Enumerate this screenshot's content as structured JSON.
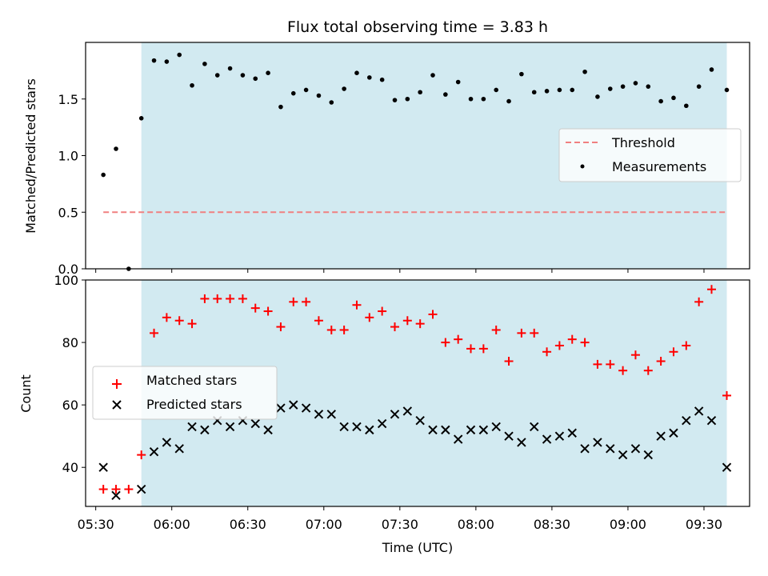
{
  "chart_data": [
    {
      "type": "scatter",
      "title": "Flux total observing time = 3.83 h",
      "xlabel": "",
      "ylabel": "Matched/Predicted stars",
      "ylim": [
        0,
        2.0
      ],
      "yticks": [
        "0.0",
        "0.5",
        "1.0",
        "1.5"
      ],
      "ytick_values": [
        0,
        0.5,
        1.0,
        1.5
      ],
      "xlim": [
        "05:26",
        "09:48"
      ],
      "shaded_span": [
        "05:48",
        "09:39"
      ],
      "shade_color": "#add8e6",
      "legend": {
        "placement": "center-right",
        "entries": [
          "Threshold",
          "Measurements"
        ]
      },
      "threshold": {
        "name": "Threshold",
        "value": 0.5,
        "x_start": "05:33",
        "x_end": "09:39",
        "color": "#f08080",
        "style": "dashed"
      },
      "series": [
        {
          "name": "Measurements",
          "color": "#000000",
          "marker": "dot",
          "x": [
            "05:33",
            "05:38",
            "05:43",
            "05:48",
            "05:53",
            "05:58",
            "06:03",
            "06:08",
            "06:13",
            "06:18",
            "06:23",
            "06:28",
            "06:33",
            "06:38",
            "06:43",
            "06:48",
            "06:53",
            "06:58",
            "07:03",
            "07:08",
            "07:13",
            "07:18",
            "07:23",
            "07:28",
            "07:33",
            "07:38",
            "07:43",
            "07:48",
            "07:53",
            "07:58",
            "08:03",
            "08:08",
            "08:13",
            "08:18",
            "08:23",
            "08:28",
            "08:33",
            "08:38",
            "08:43",
            "08:48",
            "08:53",
            "08:58",
            "09:03",
            "09:08",
            "09:13",
            "09:18",
            "09:23",
            "09:28",
            "09:33",
            "09:39"
          ],
          "y": [
            0.83,
            1.06,
            0.0,
            1.33,
            1.84,
            1.83,
            1.89,
            1.62,
            1.81,
            1.71,
            1.77,
            1.71,
            1.68,
            1.73,
            1.43,
            1.55,
            1.58,
            1.53,
            1.47,
            1.59,
            1.73,
            1.69,
            1.67,
            1.49,
            1.5,
            1.56,
            1.71,
            1.54,
            1.65,
            1.5,
            1.5,
            1.58,
            1.48,
            1.72,
            1.56,
            1.57,
            1.58,
            1.58,
            1.74,
            1.52,
            1.59,
            1.61,
            1.64,
            1.61,
            1.48,
            1.51,
            1.44,
            1.61,
            1.76,
            1.58
          ]
        }
      ]
    },
    {
      "type": "scatter",
      "title": "",
      "xlabel": "Time (UTC)",
      "ylabel": "Count",
      "ylim": [
        27.5,
        100
      ],
      "yticks": [
        "40",
        "60",
        "80",
        "100"
      ],
      "ytick_values": [
        40,
        60,
        80,
        100
      ],
      "xlim": [
        "05:26",
        "09:48"
      ],
      "xticks": [
        "05:30",
        "06:00",
        "06:30",
        "07:00",
        "07:30",
        "08:00",
        "08:30",
        "09:00",
        "09:30"
      ],
      "shaded_span": [
        "05:48",
        "09:39"
      ],
      "shade_color": "#add8e6",
      "legend": {
        "placement": "center-left",
        "entries": [
          "Matched stars",
          "Predicted stars"
        ]
      },
      "series": [
        {
          "name": "Matched stars",
          "color": "#ff0000",
          "marker": "plus",
          "x": [
            "05:33",
            "05:38",
            "05:43",
            "05:48",
            "05:53",
            "05:58",
            "06:03",
            "06:08",
            "06:13",
            "06:18",
            "06:23",
            "06:28",
            "06:33",
            "06:38",
            "06:43",
            "06:48",
            "06:53",
            "06:58",
            "07:03",
            "07:08",
            "07:13",
            "07:18",
            "07:23",
            "07:28",
            "07:33",
            "07:38",
            "07:43",
            "07:48",
            "07:53",
            "07:58",
            "08:03",
            "08:08",
            "08:13",
            "08:18",
            "08:23",
            "08:28",
            "08:33",
            "08:38",
            "08:43",
            "08:48",
            "08:53",
            "08:58",
            "09:03",
            "09:08",
            "09:13",
            "09:18",
            "09:23",
            "09:28",
            "09:33",
            "09:39"
          ],
          "y": [
            33,
            33,
            33,
            44,
            83,
            88,
            87,
            86,
            94,
            94,
            94,
            94,
            91,
            90,
            85,
            93,
            93,
            87,
            84,
            84,
            92,
            88,
            90,
            85,
            87,
            86,
            89,
            80,
            81,
            78,
            78,
            84,
            74,
            83,
            83,
            77,
            79,
            81,
            80,
            73,
            73,
            71,
            76,
            71,
            74,
            77,
            79,
            93,
            97,
            63
          ]
        },
        {
          "name": "Predicted stars",
          "color": "#000000",
          "marker": "x",
          "x": [
            "05:33",
            "05:38",
            "05:43",
            "05:48",
            "05:53",
            "05:58",
            "06:03",
            "06:08",
            "06:13",
            "06:18",
            "06:23",
            "06:28",
            "06:33",
            "06:38",
            "06:43",
            "06:48",
            "06:53",
            "06:58",
            "07:03",
            "07:08",
            "07:13",
            "07:18",
            "07:23",
            "07:28",
            "07:33",
            "07:38",
            "07:43",
            "07:48",
            "07:53",
            "07:58",
            "08:03",
            "08:08",
            "08:13",
            "08:18",
            "08:23",
            "08:28",
            "08:33",
            "08:38",
            "08:43",
            "08:48",
            "08:53",
            "08:58",
            "09:03",
            "09:08",
            "09:13",
            "09:18",
            "09:23",
            "09:28",
            "09:33",
            "09:39"
          ],
          "y": [
            40,
            31,
            null,
            33,
            45,
            48,
            46,
            53,
            52,
            55,
            53,
            55,
            54,
            52,
            59,
            60,
            59,
            57,
            57,
            53,
            53,
            52,
            54,
            57,
            58,
            55,
            52,
            52,
            49,
            52,
            52,
            53,
            50,
            48,
            53,
            49,
            50,
            51,
            46,
            48,
            46,
            44,
            46,
            44,
            50,
            51,
            55,
            58,
            55,
            40
          ]
        }
      ]
    }
  ]
}
